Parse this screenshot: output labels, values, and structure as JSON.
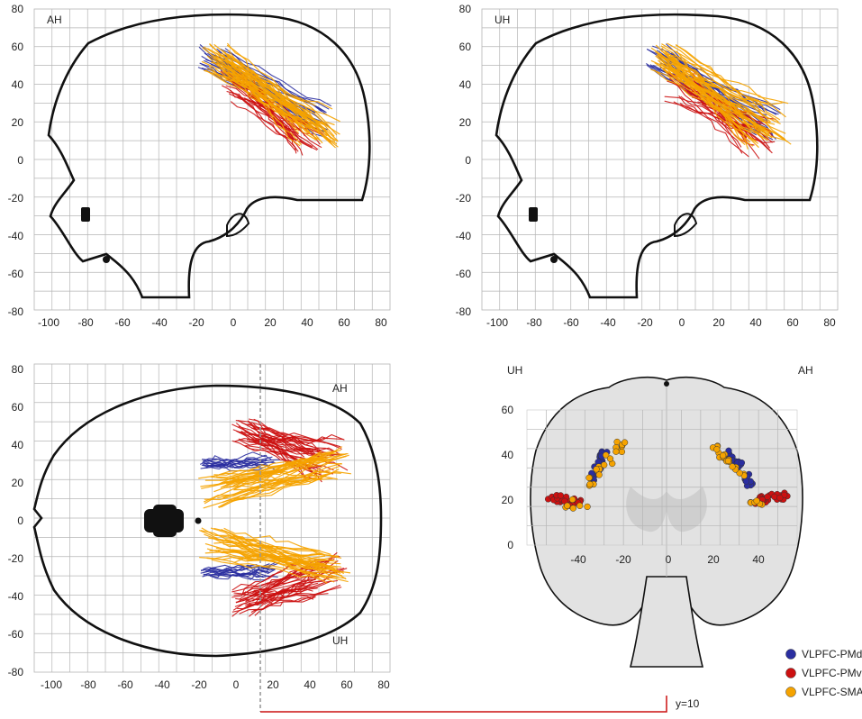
{
  "panels": {
    "sagittal_ah": {
      "label": "AH",
      "x_ticks": [
        "-100",
        "-80",
        "-60",
        "-40",
        "-20",
        "0",
        "20",
        "40",
        "60",
        "80"
      ],
      "y_ticks": [
        "80",
        "60",
        "40",
        "20",
        "0",
        "-20",
        "-40",
        "-60",
        "-80"
      ]
    },
    "sagittal_uh": {
      "label": "UH",
      "x_ticks": [
        "-100",
        "-80",
        "-60",
        "-40",
        "-20",
        "0",
        "20",
        "40",
        "60",
        "80"
      ],
      "y_ticks": [
        "80",
        "60",
        "40",
        "20",
        "0",
        "-20",
        "-40",
        "-60",
        "-80"
      ]
    },
    "axial": {
      "label_top": "AH",
      "label_bottom": "UH",
      "x_ticks": [
        "-100",
        "-80",
        "-60",
        "-40",
        "-20",
        "0",
        "20",
        "40",
        "60",
        "80"
      ],
      "y_ticks": [
        "80",
        "60",
        "40",
        "20",
        "0",
        "-20",
        "-40",
        "-60",
        "-80"
      ]
    },
    "coronal": {
      "label_left": "UH",
      "label_right": "AH",
      "x_ticks": [
        "-40",
        "-20",
        "0",
        "20",
        "40"
      ],
      "y_ticks": [
        "60",
        "40",
        "20",
        "0"
      ]
    }
  },
  "legend": {
    "items": [
      {
        "label": "VLPFC-PMd",
        "color": "#2a2ea0"
      },
      {
        "label": "VLPFC-PMv",
        "color": "#cc1111"
      },
      {
        "label": "VLPFC-SMA",
        "color": "#f5a300"
      }
    ]
  },
  "slice_marker": {
    "label": "y=10",
    "color": "#cc1111"
  },
  "colors": {
    "pmd": "#2a2ea0",
    "pmv": "#cc1111",
    "sma": "#f5a300",
    "grid": "#b5b5b5",
    "outline": "#111111"
  }
}
